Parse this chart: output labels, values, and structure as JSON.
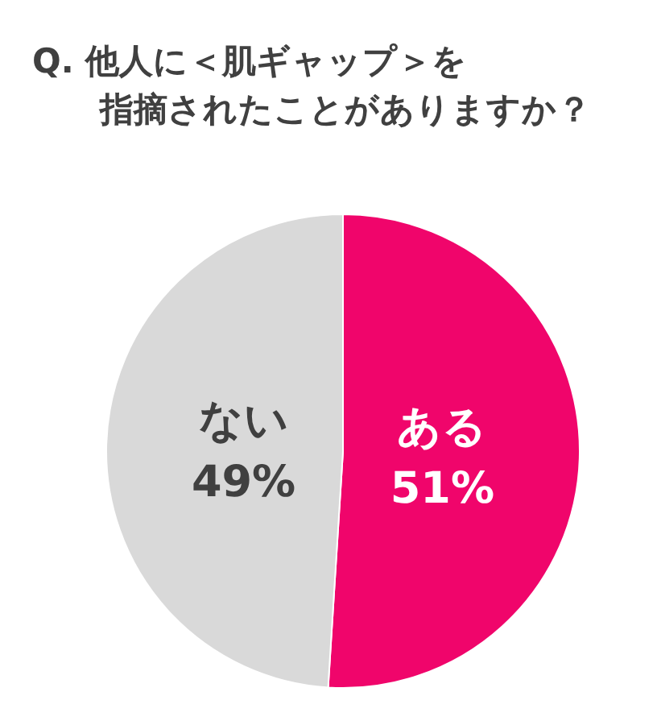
{
  "chart_data": {
    "type": "pie",
    "title": "Q. 他人に＜肌ギャップ＞を指摘されたことがありますか？",
    "categories": [
      "ある",
      "ない"
    ],
    "values": [
      51,
      49
    ],
    "value_labels": [
      "51%",
      "49%"
    ],
    "colors": [
      "#f0056b",
      "#d9d9d9"
    ]
  }
}
